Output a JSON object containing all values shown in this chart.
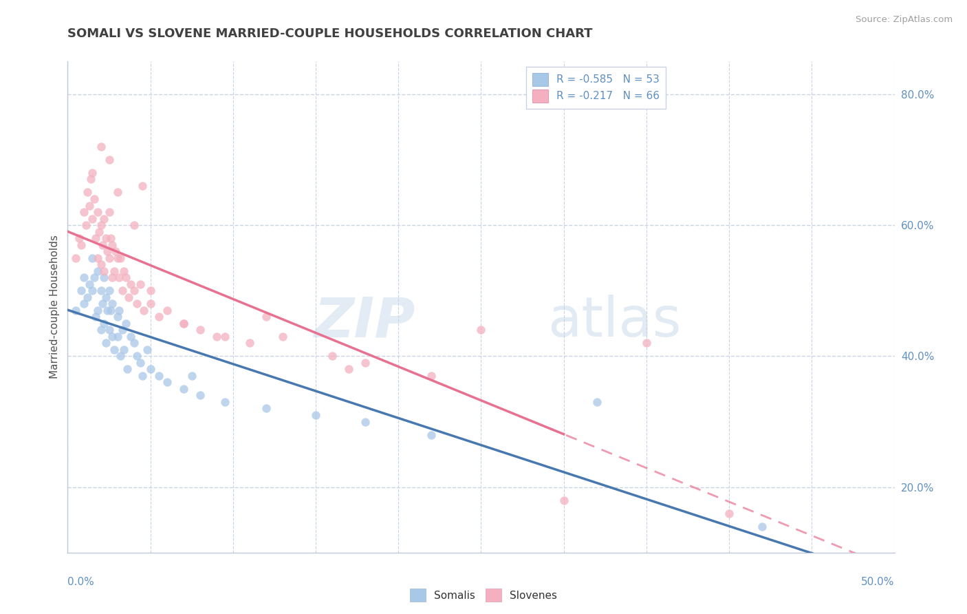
{
  "title": "SOMALI VS SLOVENE MARRIED-COUPLE HOUSEHOLDS CORRELATION CHART",
  "source": "Source: ZipAtlas.com",
  "ylabel": "Married-couple Households",
  "yticks": [
    0.2,
    0.4,
    0.6,
    0.8
  ],
  "xlim": [
    0.0,
    0.5
  ],
  "ylim": [
    0.1,
    0.85
  ],
  "legend1_label1": "R = -0.585   N = 53",
  "legend1_label2": "R = -0.217   N = 66",
  "somali_color": "#a8c8e8",
  "slovene_color": "#f4b0c0",
  "somali_line_color": "#4878b0",
  "slovene_line_color": "#e87090",
  "bg_color": "#ffffff",
  "grid_color": "#c8d4e4",
  "title_color": "#404040",
  "axis_label_color": "#6090c0",
  "right_axis_color": "#6090c0",
  "somali_x": [
    0.005,
    0.008,
    0.01,
    0.01,
    0.012,
    0.013,
    0.015,
    0.015,
    0.016,
    0.017,
    0.018,
    0.018,
    0.02,
    0.02,
    0.021,
    0.022,
    0.022,
    0.023,
    0.023,
    0.024,
    0.025,
    0.025,
    0.026,
    0.027,
    0.027,
    0.028,
    0.03,
    0.03,
    0.031,
    0.032,
    0.033,
    0.034,
    0.035,
    0.036,
    0.038,
    0.04,
    0.042,
    0.044,
    0.045,
    0.048,
    0.05,
    0.055,
    0.06,
    0.07,
    0.075,
    0.08,
    0.095,
    0.12,
    0.15,
    0.18,
    0.22,
    0.32,
    0.42
  ],
  "somali_y": [
    0.47,
    0.5,
    0.52,
    0.48,
    0.49,
    0.51,
    0.55,
    0.5,
    0.52,
    0.46,
    0.53,
    0.47,
    0.5,
    0.44,
    0.48,
    0.52,
    0.45,
    0.49,
    0.42,
    0.47,
    0.5,
    0.44,
    0.47,
    0.43,
    0.48,
    0.41,
    0.46,
    0.43,
    0.47,
    0.4,
    0.44,
    0.41,
    0.45,
    0.38,
    0.43,
    0.42,
    0.4,
    0.39,
    0.37,
    0.41,
    0.38,
    0.37,
    0.36,
    0.35,
    0.37,
    0.34,
    0.33,
    0.32,
    0.31,
    0.3,
    0.28,
    0.33,
    0.14
  ],
  "slovene_x": [
    0.005,
    0.007,
    0.008,
    0.01,
    0.011,
    0.012,
    0.013,
    0.014,
    0.015,
    0.015,
    0.016,
    0.017,
    0.018,
    0.018,
    0.019,
    0.02,
    0.02,
    0.021,
    0.022,
    0.022,
    0.023,
    0.024,
    0.025,
    0.025,
    0.026,
    0.027,
    0.027,
    0.028,
    0.029,
    0.03,
    0.031,
    0.032,
    0.033,
    0.034,
    0.035,
    0.037,
    0.038,
    0.04,
    0.042,
    0.044,
    0.046,
    0.05,
    0.055,
    0.06,
    0.07,
    0.08,
    0.095,
    0.11,
    0.13,
    0.16,
    0.02,
    0.025,
    0.03,
    0.04,
    0.045,
    0.05,
    0.07,
    0.09,
    0.12,
    0.18,
    0.25,
    0.35,
    0.3,
    0.4,
    0.17,
    0.22
  ],
  "slovene_y": [
    0.55,
    0.58,
    0.57,
    0.62,
    0.6,
    0.65,
    0.63,
    0.67,
    0.68,
    0.61,
    0.64,
    0.58,
    0.62,
    0.55,
    0.59,
    0.6,
    0.54,
    0.57,
    0.61,
    0.53,
    0.58,
    0.56,
    0.62,
    0.55,
    0.58,
    0.52,
    0.57,
    0.53,
    0.56,
    0.55,
    0.52,
    0.55,
    0.5,
    0.53,
    0.52,
    0.49,
    0.51,
    0.5,
    0.48,
    0.51,
    0.47,
    0.48,
    0.46,
    0.47,
    0.45,
    0.44,
    0.43,
    0.42,
    0.43,
    0.4,
    0.72,
    0.7,
    0.65,
    0.6,
    0.66,
    0.5,
    0.45,
    0.43,
    0.46,
    0.39,
    0.44,
    0.42,
    0.18,
    0.16,
    0.38,
    0.37
  ]
}
